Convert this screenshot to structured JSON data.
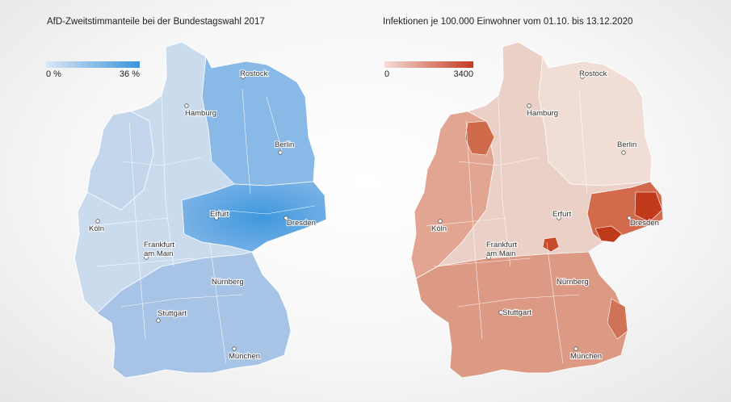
{
  "maps": [
    {
      "title": "AfD-Zweitstimmanteile bei der Bundestagswahl 2017",
      "legend": {
        "min_label": "0 %",
        "max_label": "36 %",
        "color_low": "#dce6f2",
        "color_high": "#3a95dd"
      },
      "cities": [
        {
          "name": "Rostock"
        },
        {
          "name": "Hamburg"
        },
        {
          "name": "Berlin"
        },
        {
          "name": "Erfurt"
        },
        {
          "name": "Dresden"
        },
        {
          "name": "Köln"
        },
        {
          "name": "Frankfurt am Main"
        },
        {
          "name": "Nürnberg"
        },
        {
          "name": "Stuttgart"
        },
        {
          "name": "München"
        }
      ]
    },
    {
      "title": "Infektionen je 100.000 Einwohner vom 01.10. bis 13.12.2020",
      "legend": {
        "min_label": "0",
        "max_label": "3400",
        "color_low": "#f4ddd5",
        "color_high": "#c63a1d"
      },
      "cities": [
        {
          "name": "Rostock"
        },
        {
          "name": "Hamburg"
        },
        {
          "name": "Berlin"
        },
        {
          "name": "Erfurt"
        },
        {
          "name": "Dresden"
        },
        {
          "name": "Köln"
        },
        {
          "name": "Frankfurt am Main"
        },
        {
          "name": "Nürnberg"
        },
        {
          "name": "Stuttgart"
        },
        {
          "name": "München"
        }
      ]
    }
  ]
}
